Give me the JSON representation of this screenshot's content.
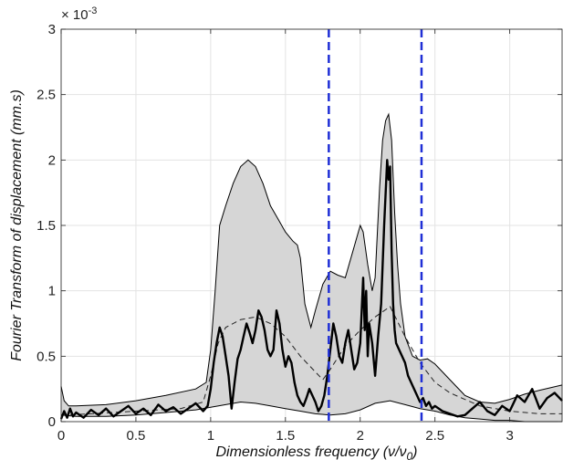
{
  "chart_data": {
    "type": "line",
    "xlabel_text": "Dimensionless frequency (",
    "xlabel_nu": "ν",
    "xlabel_slash": "/",
    "xlabel_nu0": "ν",
    "xlabel_sub": "0",
    "xlabel_close": ")",
    "ylabel": "Fourier Transform of displacement (mm.s)",
    "exponent_base": "× 10",
    "exponent_power": "-3",
    "xlim": [
      0,
      3.35
    ],
    "ylim": [
      0,
      3
    ],
    "x_ticks": [
      0,
      0.5,
      1,
      1.5,
      2,
      2.5,
      3
    ],
    "x_tick_labels": [
      "0",
      "0.5",
      "1",
      "1.5",
      "2",
      "2.5",
      "3"
    ],
    "y_ticks": [
      0,
      0.5,
      1,
      1.5,
      2,
      2.5,
      3
    ],
    "y_tick_labels": [
      "0",
      "0.5",
      "1",
      "1.5",
      "2",
      "2.5",
      "3"
    ],
    "grid": true,
    "vertical_lines": [
      1.79,
      2.41
    ],
    "colors": {
      "band_fill": "#d6d6d6",
      "band_edge": "#000000",
      "vline": "#1f2fd6",
      "main": "#000000"
    },
    "series": [
      {
        "role": "upper-envelope",
        "x": [
          0,
          0.02,
          0.05,
          0.1,
          0.3,
          0.5,
          0.7,
          0.9,
          0.97,
          1.0,
          1.03,
          1.06,
          1.1,
          1.15,
          1.2,
          1.25,
          1.3,
          1.35,
          1.4,
          1.45,
          1.5,
          1.55,
          1.58,
          1.6,
          1.63,
          1.67,
          1.7,
          1.75,
          1.8,
          1.85,
          1.9,
          1.95,
          1.98,
          2.0,
          2.02,
          2.05,
          2.08,
          2.1,
          2.13,
          2.15,
          2.17,
          2.19,
          2.21,
          2.23,
          2.25,
          2.27,
          2.3,
          2.35,
          2.4,
          2.45,
          2.5,
          2.55,
          2.6,
          2.7,
          2.8,
          2.9,
          3.0,
          3.1,
          3.2,
          3.35
        ],
        "y": [
          0.27,
          0.16,
          0.12,
          0.12,
          0.13,
          0.16,
          0.2,
          0.25,
          0.3,
          0.55,
          1.0,
          1.5,
          1.65,
          1.82,
          1.95,
          2.0,
          1.95,
          1.82,
          1.65,
          1.55,
          1.45,
          1.38,
          1.35,
          1.25,
          0.9,
          0.72,
          0.85,
          1.05,
          1.15,
          1.12,
          1.1,
          1.3,
          1.42,
          1.5,
          1.45,
          1.2,
          1.0,
          1.1,
          1.8,
          2.15,
          2.3,
          2.35,
          2.15,
          1.6,
          1.2,
          0.9,
          0.65,
          0.5,
          0.47,
          0.48,
          0.44,
          0.38,
          0.32,
          0.2,
          0.15,
          0.14,
          0.17,
          0.21,
          0.24,
          0.28
        ]
      },
      {
        "role": "lower-envelope",
        "x": [
          0,
          0.1,
          0.3,
          0.5,
          0.7,
          0.9,
          1.0,
          1.1,
          1.2,
          1.3,
          1.4,
          1.5,
          1.6,
          1.7,
          1.8,
          1.9,
          2.0,
          2.1,
          2.2,
          2.3,
          2.4,
          2.5,
          2.6,
          2.7,
          2.8,
          2.9,
          3.0,
          3.1,
          3.2,
          3.35
        ],
        "y": [
          0.05,
          0.04,
          0.04,
          0.05,
          0.07,
          0.09,
          0.11,
          0.13,
          0.15,
          0.14,
          0.12,
          0.1,
          0.08,
          0.06,
          0.05,
          0.06,
          0.09,
          0.14,
          0.16,
          0.13,
          0.1,
          0.08,
          0.05,
          0.03,
          0.02,
          0.01,
          0.01,
          0.0,
          0.0,
          0.0
        ]
      },
      {
        "role": "mean-dashed",
        "x": [
          0,
          0.2,
          0.5,
          0.8,
          0.95,
          1.0,
          1.05,
          1.1,
          1.2,
          1.3,
          1.4,
          1.5,
          1.6,
          1.7,
          1.75,
          1.8,
          1.9,
          2.0,
          2.1,
          2.2,
          2.3,
          2.4,
          2.5,
          2.6,
          2.8,
          3.0,
          3.2,
          3.35
        ],
        "y": [
          0.05,
          0.06,
          0.08,
          0.1,
          0.15,
          0.35,
          0.6,
          0.72,
          0.78,
          0.8,
          0.75,
          0.65,
          0.5,
          0.38,
          0.32,
          0.4,
          0.58,
          0.7,
          0.8,
          0.88,
          0.65,
          0.45,
          0.3,
          0.22,
          0.12,
          0.08,
          0.06,
          0.06
        ]
      },
      {
        "role": "main-spectrum",
        "x": [
          0,
          0.02,
          0.04,
          0.06,
          0.08,
          0.1,
          0.15,
          0.2,
          0.25,
          0.3,
          0.35,
          0.4,
          0.45,
          0.5,
          0.55,
          0.6,
          0.65,
          0.7,
          0.75,
          0.8,
          0.85,
          0.9,
          0.95,
          0.98,
          1.0,
          1.02,
          1.04,
          1.06,
          1.08,
          1.1,
          1.12,
          1.14,
          1.16,
          1.18,
          1.2,
          1.22,
          1.24,
          1.26,
          1.28,
          1.3,
          1.32,
          1.34,
          1.36,
          1.38,
          1.4,
          1.42,
          1.44,
          1.46,
          1.48,
          1.5,
          1.52,
          1.54,
          1.56,
          1.58,
          1.6,
          1.62,
          1.64,
          1.66,
          1.68,
          1.7,
          1.72,
          1.74,
          1.76,
          1.78,
          1.8,
          1.82,
          1.84,
          1.86,
          1.88,
          1.9,
          1.92,
          1.94,
          1.96,
          1.98,
          2.0,
          2.02,
          2.03,
          2.04,
          2.05,
          2.06,
          2.08,
          2.1,
          2.12,
          2.14,
          2.16,
          2.18,
          2.19,
          2.2,
          2.21,
          2.22,
          2.23,
          2.24,
          2.26,
          2.28,
          2.3,
          2.32,
          2.34,
          2.36,
          2.38,
          2.4,
          2.42,
          2.44,
          2.46,
          2.48,
          2.5,
          2.55,
          2.6,
          2.65,
          2.7,
          2.75,
          2.8,
          2.85,
          2.9,
          2.95,
          3.0,
          3.05,
          3.1,
          3.15,
          3.2,
          3.25,
          3.3,
          3.35
        ],
        "y": [
          0.02,
          0.08,
          0.03,
          0.1,
          0.04,
          0.07,
          0.03,
          0.09,
          0.05,
          0.1,
          0.04,
          0.08,
          0.12,
          0.06,
          0.1,
          0.05,
          0.13,
          0.08,
          0.11,
          0.06,
          0.1,
          0.14,
          0.08,
          0.12,
          0.25,
          0.45,
          0.6,
          0.72,
          0.65,
          0.5,
          0.35,
          0.1,
          0.3,
          0.48,
          0.55,
          0.65,
          0.75,
          0.68,
          0.6,
          0.7,
          0.85,
          0.8,
          0.7,
          0.55,
          0.5,
          0.55,
          0.85,
          0.75,
          0.55,
          0.42,
          0.5,
          0.45,
          0.3,
          0.2,
          0.15,
          0.12,
          0.18,
          0.25,
          0.2,
          0.15,
          0.08,
          0.12,
          0.2,
          0.35,
          0.55,
          0.75,
          0.65,
          0.5,
          0.45,
          0.6,
          0.7,
          0.55,
          0.4,
          0.45,
          0.6,
          1.1,
          0.7,
          1.0,
          0.5,
          0.75,
          0.6,
          0.35,
          0.65,
          0.9,
          1.5,
          2.0,
          1.85,
          1.95,
          1.3,
          0.9,
          0.7,
          0.6,
          0.55,
          0.5,
          0.45,
          0.35,
          0.3,
          0.25,
          0.2,
          0.15,
          0.18,
          0.12,
          0.15,
          0.1,
          0.12,
          0.08,
          0.06,
          0.04,
          0.05,
          0.1,
          0.15,
          0.08,
          0.05,
          0.12,
          0.08,
          0.2,
          0.15,
          0.25,
          0.1,
          0.18,
          0.22,
          0.16
        ]
      }
    ]
  }
}
